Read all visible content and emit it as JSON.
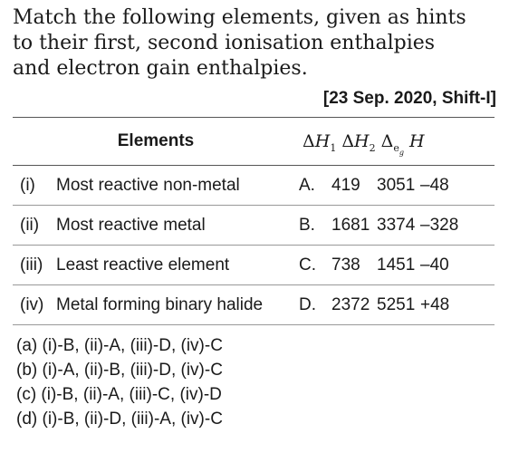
{
  "question": {
    "line1": "Match the following elements, given as hints",
    "line2": "to their first, second ionisation enthalpies",
    "line3": "and electron gain enthalpies.",
    "source": "[23 Sep. 2020, Shift-I]"
  },
  "table": {
    "header_elements": "Elements",
    "header_delta": "Δ",
    "header_h": "H",
    "header_sub1": "1",
    "header_sub2": "2",
    "header_sub_e": "e",
    "header_sub_g": "g",
    "rows": [
      {
        "num": "(i)",
        "desc": "Most reactive non-metal",
        "letter": "A.",
        "ie1": "419",
        "ie2": "3051",
        "eg": "–48"
      },
      {
        "num": "(ii)",
        "desc": "Most reactive metal",
        "letter": "B.",
        "ie1": "1681",
        "ie2": "3374",
        "eg": "–328"
      },
      {
        "num": "(iii)",
        "desc": "Least reactive element",
        "letter": "C.",
        "ie1": "738",
        "ie2": "1451",
        "eg": "–40"
      },
      {
        "num": "(iv)",
        "desc": "Metal forming binary halide",
        "letter": "D.",
        "ie1": "2372",
        "ie2": "5251",
        "eg": "+48"
      }
    ]
  },
  "options": [
    "(a) (i)-B, (ii)-A, (iii)-D, (iv)-C",
    "(b) (i)-A, (ii)-B, (iii)-D, (iv)-C",
    "(c) (i)-B, (ii)-A, (iii)-C, (iv)-D",
    "(d) (i)-B, (ii)-D, (iii)-A, (iv)-C"
  ]
}
